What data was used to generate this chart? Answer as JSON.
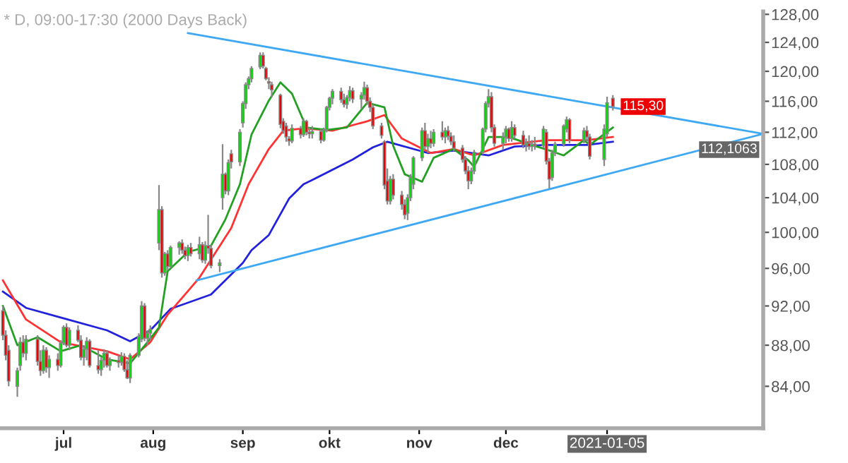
{
  "chart_data": {
    "type": "candlestick",
    "title": "* D, 09:00-17:30 (2000 Days Back)",
    "x": [
      "2020-06-10",
      "2020-06-11",
      "2020-06-12",
      "2020-06-15",
      "2020-06-16",
      "2020-06-17",
      "2020-06-18",
      "2020-06-22",
      "2020-06-23",
      "2020-06-24",
      "2020-06-25",
      "2020-06-26",
      "2020-06-29",
      "2020-06-30",
      "2020-07-01",
      "2020-07-02",
      "2020-07-03",
      "2020-07-06",
      "2020-07-07",
      "2020-07-08",
      "2020-07-09",
      "2020-07-10",
      "2020-07-13",
      "2020-07-14",
      "2020-07-15",
      "2020-07-16",
      "2020-07-17",
      "2020-07-20",
      "2020-07-21",
      "2020-07-22",
      "2020-07-23",
      "2020-07-24",
      "2020-07-27",
      "2020-07-28",
      "2020-07-29",
      "2020-07-30",
      "2020-07-31",
      "2020-08-03",
      "2020-08-04",
      "2020-08-05",
      "2020-08-06",
      "2020-08-07",
      "2020-08-10",
      "2020-08-11",
      "2020-08-12",
      "2020-08-13",
      "2020-08-14",
      "2020-08-17",
      "2020-08-18",
      "2020-08-19",
      "2020-08-20",
      "2020-08-21",
      "2020-08-24",
      "2020-08-25",
      "2020-08-26",
      "2020-08-27",
      "2020-08-28",
      "2020-08-31",
      "2020-09-01",
      "2020-09-02",
      "2020-09-03",
      "2020-09-04",
      "2020-09-07",
      "2020-09-08",
      "2020-09-09",
      "2020-09-10",
      "2020-09-11",
      "2020-09-14",
      "2020-09-15",
      "2020-09-16",
      "2020-09-17",
      "2020-09-18",
      "2020-09-21",
      "2020-09-22",
      "2020-09-23",
      "2020-09-24",
      "2020-09-25",
      "2020-09-28",
      "2020-09-29",
      "2020-09-30",
      "2020-10-01",
      "2020-10-02",
      "2020-10-05",
      "2020-10-06",
      "2020-10-07",
      "2020-10-08",
      "2020-10-09",
      "2020-10-12",
      "2020-10-13",
      "2020-10-14",
      "2020-10-15",
      "2020-10-16",
      "2020-10-19",
      "2020-10-20",
      "2020-10-21",
      "2020-10-22",
      "2020-10-23",
      "2020-10-26",
      "2020-10-27",
      "2020-10-28",
      "2020-10-29",
      "2020-10-30",
      "2020-11-02",
      "2020-11-03",
      "2020-11-04",
      "2020-11-05",
      "2020-11-06",
      "2020-11-09",
      "2020-11-10",
      "2020-11-11",
      "2020-11-12",
      "2020-11-13",
      "2020-11-16",
      "2020-11-17",
      "2020-11-18",
      "2020-11-19",
      "2020-11-20",
      "2020-11-23",
      "2020-11-24",
      "2020-11-25",
      "2020-11-26",
      "2020-11-27",
      "2020-11-30",
      "2020-12-01",
      "2020-12-02",
      "2020-12-03",
      "2020-12-04",
      "2020-12-07",
      "2020-12-08",
      "2020-12-09",
      "2020-12-10",
      "2020-12-11",
      "2020-12-14",
      "2020-12-15",
      "2020-12-16",
      "2020-12-17",
      "2020-12-18",
      "2020-12-21",
      "2020-12-22",
      "2020-12-23",
      "2020-12-28",
      "2020-12-29",
      "2020-12-30",
      "2021-01-04",
      "2021-01-05",
      "2021-01-07"
    ],
    "ohlc": [
      [
        91.5,
        92.0,
        88.5,
        89.0
      ],
      [
        89.0,
        89.5,
        86.5,
        87.0
      ],
      [
        87.5,
        88.0,
        84.0,
        84.5
      ],
      [
        84.0,
        85.8,
        83.0,
        85.5
      ],
      [
        86.0,
        88.8,
        85.5,
        88.3
      ],
      [
        88.3,
        89.0,
        86.8,
        87.2
      ],
      [
        87.2,
        89.0,
        86.5,
        88.6
      ],
      [
        88.6,
        89.0,
        86.0,
        86.4
      ],
      [
        86.4,
        87.5,
        85.0,
        85.5
      ],
      [
        85.5,
        88.0,
        85.2,
        87.5
      ],
      [
        87.5,
        87.8,
        85.3,
        85.8
      ],
      [
        85.8,
        87.0,
        84.8,
        86.6
      ],
      [
        86.6,
        87.2,
        85.5,
        86.0
      ],
      [
        86.0,
        88.5,
        85.8,
        88.2
      ],
      [
        88.2,
        90.0,
        88.0,
        89.8
      ],
      [
        89.8,
        90.2,
        87.8,
        88.0
      ],
      [
        88.0,
        89.8,
        87.5,
        89.5
      ],
      [
        89.5,
        90.0,
        88.3,
        88.5
      ],
      [
        88.5,
        89.0,
        86.5,
        86.8
      ],
      [
        86.8,
        88.0,
        86.0,
        87.6
      ],
      [
        87.6,
        88.8,
        86.5,
        88.4
      ],
      [
        88.4,
        88.6,
        85.8,
        86.0
      ],
      [
        86.0,
        87.5,
        85.2,
        85.6
      ],
      [
        85.6,
        86.8,
        85.0,
        86.5
      ],
      [
        86.5,
        87.6,
        85.8,
        87.2
      ],
      [
        87.2,
        87.5,
        85.8,
        86.0
      ],
      [
        86.0,
        86.8,
        85.5,
        86.5
      ],
      [
        86.5,
        87.0,
        85.8,
        86.3
      ],
      [
        86.3,
        87.3,
        86.0,
        86.9
      ],
      [
        86.9,
        87.2,
        85.4,
        85.6
      ],
      [
        85.6,
        86.5,
        84.7,
        84.8
      ],
      [
        84.8,
        87.2,
        84.3,
        87.0
      ],
      [
        87.0,
        89.2,
        86.8,
        88.9
      ],
      [
        88.6,
        92.5,
        88.3,
        92.0
      ],
      [
        92.0,
        92.3,
        88.4,
        88.7
      ],
      [
        88.7,
        89.5,
        88.0,
        89.2
      ],
      [
        89.2,
        90.0,
        88.5,
        89.6
      ],
      [
        98.8,
        105.5,
        98.0,
        102.6
      ],
      [
        102.6,
        103.0,
        95.0,
        95.5
      ],
      [
        95.5,
        97.8,
        95.2,
        97.6
      ],
      [
        97.6,
        98.0,
        95.8,
        96.2
      ],
      [
        96.2,
        98.5,
        96.0,
        98.3
      ],
      [
        98.3,
        99.0,
        97.5,
        98.8
      ],
      [
        98.8,
        99.2,
        97.6,
        98.0
      ],
      [
        98.0,
        98.4,
        97.0,
        97.4
      ],
      [
        97.4,
        98.6,
        96.8,
        98.3
      ],
      [
        98.3,
        98.8,
        97.3,
        97.6
      ],
      [
        97.6,
        99.5,
        97.0,
        98.6
      ],
      [
        98.6,
        98.9,
        96.6,
        96.9
      ],
      [
        96.9,
        99.0,
        96.5,
        98.5
      ],
      [
        98.5,
        102.0,
        97.6,
        98.2
      ],
      [
        98.2,
        98.6,
        96.0,
        96.3
      ],
      [
        96.3,
        97.0,
        95.6,
        96.6
      ],
      [
        104.0,
        110.5,
        102.6,
        106.8
      ],
      [
        106.8,
        107.0,
        104.4,
        104.8
      ],
      [
        104.8,
        108.6,
        104.3,
        108.2
      ],
      [
        109.3,
        109.8,
        107.5,
        108.3
      ],
      [
        108.3,
        112.4,
        107.8,
        112.0
      ],
      [
        113.2,
        116.0,
        112.6,
        115.7
      ],
      [
        115.7,
        118.5,
        115.0,
        118.2
      ],
      [
        118.2,
        119.3,
        117.6,
        119.0
      ],
      [
        119.0,
        120.7,
        118.5,
        120.4
      ],
      [
        120.6,
        122.6,
        120.3,
        122.2
      ],
      [
        122.2,
        122.6,
        120.4,
        120.7
      ],
      [
        120.4,
        120.6,
        118.8,
        119.0
      ],
      [
        118.6,
        119.2,
        117.6,
        118.4
      ],
      [
        118.2,
        118.6,
        116.5,
        117.5
      ],
      [
        116.8,
        117.0,
        112.5,
        113.0
      ],
      [
        113.4,
        113.8,
        111.8,
        112.2
      ],
      [
        112.8,
        113.2,
        110.8,
        111.4
      ],
      [
        111.2,
        111.5,
        110.3,
        110.9
      ],
      [
        110.9,
        113.0,
        110.6,
        112.5
      ],
      [
        112.5,
        112.8,
        111.2,
        111.7
      ],
      [
        111.7,
        113.8,
        111.4,
        113.4
      ],
      [
        113.4,
        113.6,
        111.6,
        112.0
      ],
      [
        112.0,
        112.6,
        111.2,
        111.8
      ],
      [
        111.8,
        112.8,
        111.2,
        112.1
      ],
      [
        112.1,
        112.4,
        110.6,
        111.0
      ],
      [
        111.0,
        112.6,
        110.8,
        112.3
      ],
      [
        112.3,
        115.4,
        112.0,
        115.2
      ],
      [
        115.2,
        116.6,
        114.8,
        116.4
      ],
      [
        116.4,
        117.6,
        115.6,
        117.3
      ],
      [
        117.3,
        117.8,
        115.8,
        116.2
      ],
      [
        116.2,
        117.0,
        115.2,
        115.6
      ],
      [
        115.6,
        116.8,
        115.0,
        116.5
      ],
      [
        116.5,
        118.0,
        116.0,
        117.4
      ],
      [
        117.4,
        117.8,
        115.8,
        116.3
      ],
      [
        116.3,
        117.2,
        115.0,
        116.8
      ],
      [
        116.8,
        118.6,
        116.2,
        117.8
      ],
      [
        117.8,
        118.2,
        115.5,
        116.0
      ],
      [
        116.0,
        116.5,
        114.6,
        115.2
      ],
      [
        115.2,
        115.6,
        112.4,
        112.8
      ],
      [
        112.8,
        113.2,
        111.2,
        111.6
      ],
      [
        110.8,
        111.0,
        105.0,
        105.5
      ],
      [
        106.0,
        107.5,
        103.2,
        103.6
      ],
      [
        103.6,
        106.6,
        103.2,
        106.2
      ],
      [
        106.2,
        106.8,
        103.8,
        104.3
      ],
      [
        104.3,
        104.8,
        102.6,
        103.2
      ],
      [
        103.2,
        103.8,
        101.5,
        102.0
      ],
      [
        102.2,
        104.4,
        101.4,
        104.0
      ],
      [
        104.0,
        106.8,
        103.6,
        106.4
      ],
      [
        105.6,
        109.0,
        105.0,
        108.8
      ],
      [
        108.8,
        112.6,
        108.4,
        112.2
      ],
      [
        112.2,
        113.2,
        109.8,
        110.2
      ],
      [
        110.2,
        111.8,
        109.4,
        111.2
      ],
      [
        111.2,
        112.2,
        110.0,
        110.6
      ],
      [
        110.6,
        112.4,
        110.2,
        112.0
      ],
      [
        112.0,
        113.4,
        111.0,
        111.4
      ],
      [
        111.4,
        112.6,
        110.6,
        112.2
      ],
      [
        112.2,
        112.8,
        111.0,
        111.5
      ],
      [
        111.5,
        112.0,
        110.4,
        110.8
      ],
      [
        110.8,
        111.6,
        109.6,
        110.0
      ],
      [
        110.0,
        110.4,
        108.2,
        108.6
      ],
      [
        108.6,
        109.0,
        106.8,
        107.2
      ],
      [
        107.2,
        107.8,
        105.0,
        106.0
      ],
      [
        106.0,
        107.6,
        105.6,
        107.2
      ],
      [
        107.2,
        109.8,
        106.8,
        109.5
      ],
      [
        109.5,
        112.6,
        109.2,
        112.4
      ],
      [
        112.4,
        116.0,
        112.0,
        115.7
      ],
      [
        115.7,
        117.6,
        115.2,
        116.6
      ],
      [
        116.6,
        117.2,
        112.0,
        112.6
      ],
      [
        112.6,
        113.0,
        110.2,
        110.6
      ],
      [
        110.6,
        112.0,
        109.8,
        111.4
      ],
      [
        111.4,
        112.8,
        110.6,
        112.4
      ],
      [
        112.4,
        112.6,
        110.8,
        111.2
      ],
      [
        111.2,
        113.4,
        110.8,
        112.6
      ],
      [
        112.6,
        113.0,
        111.2,
        111.6
      ],
      [
        111.6,
        112.2,
        110.0,
        110.4
      ],
      [
        110.4,
        111.2,
        109.6,
        110.6
      ],
      [
        110.6,
        111.6,
        109.8,
        110.2
      ],
      [
        110.2,
        111.0,
        109.6,
        110.5
      ],
      [
        110.5,
        111.4,
        109.8,
        110.3
      ],
      [
        110.3,
        112.8,
        110.0,
        112.4
      ],
      [
        112.0,
        112.4,
        108.0,
        108.4
      ],
      [
        108.4,
        108.8,
        105.1,
        106.2
      ],
      [
        106.4,
        109.8,
        106.0,
        109.4
      ],
      [
        109.4,
        110.8,
        109.0,
        110.5
      ],
      [
        110.5,
        113.0,
        110.2,
        112.8
      ],
      [
        112.4,
        114.0,
        112.0,
        113.6
      ],
      [
        113.6,
        113.8,
        110.6,
        111.0
      ],
      [
        111.0,
        112.6,
        110.6,
        112.2
      ],
      [
        112.2,
        112.8,
        110.8,
        111.4
      ],
      [
        111.4,
        111.8,
        108.6,
        109.0
      ],
      [
        108.6,
        113.0,
        107.8,
        112.4
      ],
      [
        111.8,
        116.6,
        111.4,
        115.8
      ],
      [
        116.4,
        116.8,
        114.8,
        115.3
      ]
    ],
    "series": [
      {
        "type": "line",
        "color": "#2222dd",
        "x": [
          "2020-06-10",
          "2020-06-18",
          "2020-06-30",
          "2020-07-16",
          "2020-07-24",
          "2020-07-31",
          "2020-08-07",
          "2020-08-21",
          "2020-09-01",
          "2020-09-04",
          "2020-09-10",
          "2020-09-17",
          "2020-09-22",
          "2020-09-25",
          "2020-10-09",
          "2020-10-16",
          "2020-10-21",
          "2020-11-04",
          "2020-11-13",
          "2020-11-25",
          "2020-12-04",
          "2020-12-15",
          "2020-12-29",
          "2021-01-07"
        ],
        "values": [
          93.5,
          91.8,
          90.8,
          89.5,
          88.4,
          89.5,
          91.7,
          93.2,
          96.6,
          98.0,
          99.7,
          103.9,
          105.6,
          106.1,
          108.6,
          110.1,
          110.8,
          109.4,
          109.7,
          109.1,
          110.2,
          110.4,
          110.4,
          110.8
        ]
      },
      {
        "type": "line",
        "color": "#ff3333",
        "x": [
          "2020-06-10",
          "2020-06-18",
          "2020-06-30",
          "2020-07-16",
          "2020-07-24",
          "2020-07-31",
          "2020-08-06",
          "2020-08-17",
          "2020-08-28",
          "2020-09-03",
          "2020-09-10",
          "2020-09-15",
          "2020-09-22",
          "2020-10-02",
          "2020-10-14",
          "2020-10-20",
          "2020-10-26",
          "2020-11-05",
          "2020-11-13",
          "2020-11-20",
          "2020-11-30",
          "2020-12-15",
          "2020-12-29",
          "2021-01-07"
        ],
        "values": [
          94.7,
          90.6,
          88.3,
          87.4,
          86.6,
          88.3,
          91.1,
          95.0,
          100.5,
          105.6,
          109.9,
          112.2,
          112.5,
          112.2,
          113.4,
          114.2,
          111.2,
          109.4,
          109.9,
          109.1,
          110.4,
          111.0,
          111.0,
          111.4
        ]
      },
      {
        "type": "line",
        "color": "#22a022",
        "x": [
          "2020-06-10",
          "2020-06-15",
          "2020-06-22",
          "2020-06-30",
          "2020-07-07",
          "2020-07-16",
          "2020-07-24",
          "2020-07-30",
          "2020-08-03",
          "2020-08-06",
          "2020-08-13",
          "2020-08-21",
          "2020-08-26",
          "2020-08-31",
          "2020-09-04",
          "2020-09-10",
          "2020-09-14",
          "2020-09-18",
          "2020-09-23",
          "2020-09-30",
          "2020-10-07",
          "2020-10-14",
          "2020-10-20",
          "2020-10-23",
          "2020-10-27",
          "2020-11-02",
          "2020-11-06",
          "2020-11-13",
          "2020-11-18",
          "2020-11-20",
          "2020-11-25",
          "2020-12-02",
          "2020-12-10",
          "2020-12-17",
          "2020-12-21",
          "2020-12-28",
          "2020-12-30",
          "2021-01-07"
        ],
        "values": [
          92.0,
          88.0,
          88.8,
          87.4,
          88.0,
          86.6,
          86.2,
          88.3,
          89.8,
          95.7,
          97.8,
          98.5,
          101.5,
          105.6,
          111.7,
          116.1,
          118.5,
          117.0,
          112.6,
          112.3,
          112.6,
          115.8,
          115.2,
          110.3,
          106.8,
          105.9,
          108.8,
          109.9,
          108.5,
          107.7,
          111.4,
          111.4,
          110.4,
          109.6,
          109.1,
          111.0,
          110.4,
          112.6
        ]
      },
      {
        "type": "line",
        "color": "#3ea8f5",
        "x": [
          "2020-08-13",
          "2021-02-28"
        ],
        "values": [
          125.3,
          111.8
        ]
      },
      {
        "type": "line",
        "color": "#3ea8f5",
        "x": [
          "2020-08-16",
          "2021-02-28"
        ],
        "values": [
          94.7,
          111.8
        ]
      }
    ],
    "annotations": [
      {
        "text": "115,30",
        "x": "2021-01-07",
        "y": 115.3
      },
      {
        "text": "112,1063",
        "x": "2021-02-28",
        "y": 112.1063
      }
    ],
    "log": "y",
    "xlim": [
      "2020-06-09",
      "2021-02-28"
    ],
    "xticks": [
      {
        "value": "2020-07-01",
        "label": "jul"
      },
      {
        "value": "2020-08-01",
        "label": "aug"
      },
      {
        "value": "2020-09-01",
        "label": "sep"
      },
      {
        "value": "2020-10-01",
        "label": "okt"
      },
      {
        "value": "2020-11-01",
        "label": "nov"
      },
      {
        "value": "2020-12-01",
        "label": "dec"
      },
      {
        "value": "2021-01-05",
        "label": "2021-01-05"
      }
    ],
    "ylim": [
      80.1,
      128.4
    ],
    "yticks": [
      {
        "value": 84,
        "label": "84,00"
      },
      {
        "value": 88,
        "label": "88,00"
      },
      {
        "value": 92,
        "label": "92,00"
      },
      {
        "value": 96,
        "label": "96,00"
      },
      {
        "value": 100,
        "label": "100,00"
      },
      {
        "value": 104,
        "label": "104,00"
      },
      {
        "value": 108,
        "label": "108,00"
      },
      {
        "value": 112,
        "label": "112,00"
      },
      {
        "value": 116,
        "label": "116,00"
      },
      {
        "value": 120,
        "label": "120,00"
      },
      {
        "value": 124,
        "label": "124,00"
      },
      {
        "value": 128,
        "label": "128,00"
      }
    ],
    "grid": false,
    "legend": false
  }
}
